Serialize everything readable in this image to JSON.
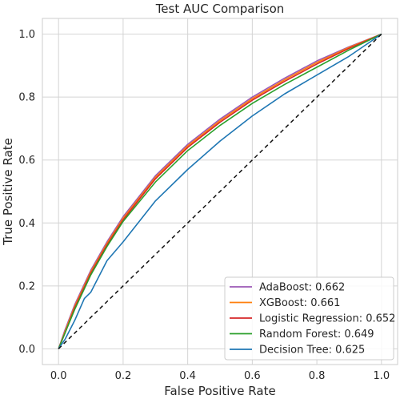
{
  "chart_data": {
    "type": "line",
    "title": "Test AUC Comparison",
    "xlabel": "False Positive Rate",
    "ylabel": "True Positive Rate",
    "xlim": [
      -0.05,
      1.05
    ],
    "ylim": [
      -0.05,
      1.05
    ],
    "xticks": [
      "0.0",
      "0.2",
      "0.4",
      "0.6",
      "0.8",
      "1.0"
    ],
    "yticks": [
      "0.0",
      "0.2",
      "0.4",
      "0.6",
      "0.8",
      "1.0"
    ],
    "grid": true,
    "legend_position": "lower-right",
    "series": [
      {
        "name": "AdaBoost: 0.662",
        "color": "#9b59b6",
        "x": [
          0,
          0.02,
          0.05,
          0.1,
          0.15,
          0.2,
          0.3,
          0.4,
          0.5,
          0.6,
          0.7,
          0.8,
          0.9,
          1.0
        ],
        "y": [
          0,
          0.06,
          0.14,
          0.25,
          0.34,
          0.42,
          0.55,
          0.65,
          0.73,
          0.8,
          0.86,
          0.915,
          0.96,
          1.0
        ]
      },
      {
        "name": "XGBoost: 0.661",
        "color": "#ff7f0e",
        "x": [
          0,
          0.02,
          0.05,
          0.1,
          0.15,
          0.2,
          0.3,
          0.4,
          0.5,
          0.6,
          0.7,
          0.8,
          0.9,
          1.0
        ],
        "y": [
          0,
          0.055,
          0.135,
          0.245,
          0.335,
          0.415,
          0.545,
          0.645,
          0.725,
          0.795,
          0.855,
          0.91,
          0.958,
          1.0
        ]
      },
      {
        "name": "Logistic Regression: 0.652",
        "color": "#d62728",
        "x": [
          0,
          0.02,
          0.05,
          0.1,
          0.15,
          0.2,
          0.3,
          0.4,
          0.5,
          0.6,
          0.7,
          0.8,
          0.9,
          1.0
        ],
        "y": [
          0,
          0.05,
          0.13,
          0.24,
          0.33,
          0.41,
          0.54,
          0.64,
          0.72,
          0.79,
          0.85,
          0.905,
          0.955,
          1.0
        ]
      },
      {
        "name": "Random Forest: 0.649",
        "color": "#2ca02c",
        "x": [
          0,
          0.02,
          0.05,
          0.1,
          0.15,
          0.2,
          0.3,
          0.4,
          0.5,
          0.6,
          0.7,
          0.8,
          0.9,
          1.0
        ],
        "y": [
          0,
          0.05,
          0.125,
          0.235,
          0.325,
          0.405,
          0.53,
          0.63,
          0.71,
          0.78,
          0.84,
          0.895,
          0.95,
          1.0
        ]
      },
      {
        "name": "Decision Tree: 0.625",
        "color": "#1f77b4",
        "x": [
          0,
          0.02,
          0.05,
          0.08,
          0.1,
          0.15,
          0.2,
          0.3,
          0.4,
          0.5,
          0.6,
          0.7,
          0.8,
          0.9,
          1.0
        ],
        "y": [
          0,
          0.03,
          0.09,
          0.16,
          0.18,
          0.28,
          0.34,
          0.47,
          0.57,
          0.66,
          0.74,
          0.81,
          0.87,
          0.93,
          1.0
        ]
      },
      {
        "name": "",
        "color": "#111111",
        "dashed": true,
        "x": [
          0,
          1
        ],
        "y": [
          0,
          1
        ]
      }
    ]
  }
}
